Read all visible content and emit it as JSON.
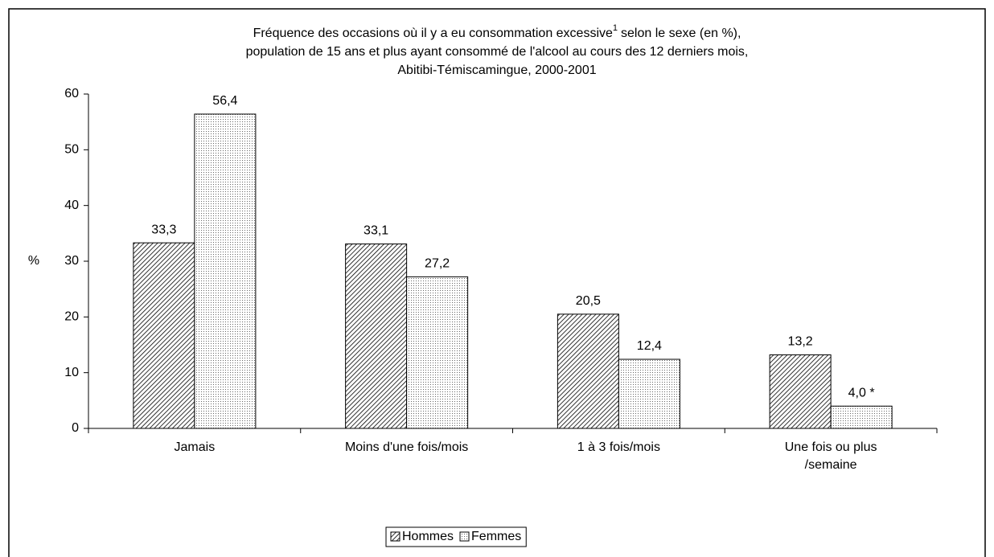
{
  "chart_data": {
    "type": "bar",
    "title": [
      "Fréquence des occasions où il y a eu consommation excessive",
      "selon le sexe (en %),",
      "population de 15 ans et plus ayant consommé de l'alcool au cours des 12 derniers mois,",
      "Abitibi-Témiscamingue, 2000-2001"
    ],
    "title_note": "1",
    "ylabel": "%",
    "categories": [
      [
        "Jamais"
      ],
      [
        "Moins d'une fois/mois"
      ],
      [
        "1 à 3 fois/mois"
      ],
      [
        "Une fois ou plus",
        "/semaine"
      ]
    ],
    "series": [
      {
        "name": "Hommes",
        "pattern": "hatch",
        "values": [
          33.3,
          33.1,
          20.5,
          13.2
        ],
        "value_labels": [
          "33,3",
          "33,1",
          "20,5",
          "13,2"
        ]
      },
      {
        "name": "Femmes",
        "pattern": "dots",
        "values": [
          56.4,
          27.2,
          12.4,
          4.0
        ],
        "value_labels": [
          "56,4",
          "27,2",
          "12,4",
          "4,0 *"
        ]
      }
    ],
    "ylim": [
      0,
      60
    ],
    "yticks": [
      0,
      10,
      20,
      30,
      40,
      50,
      60
    ],
    "grid": false,
    "legend": "bottom"
  }
}
